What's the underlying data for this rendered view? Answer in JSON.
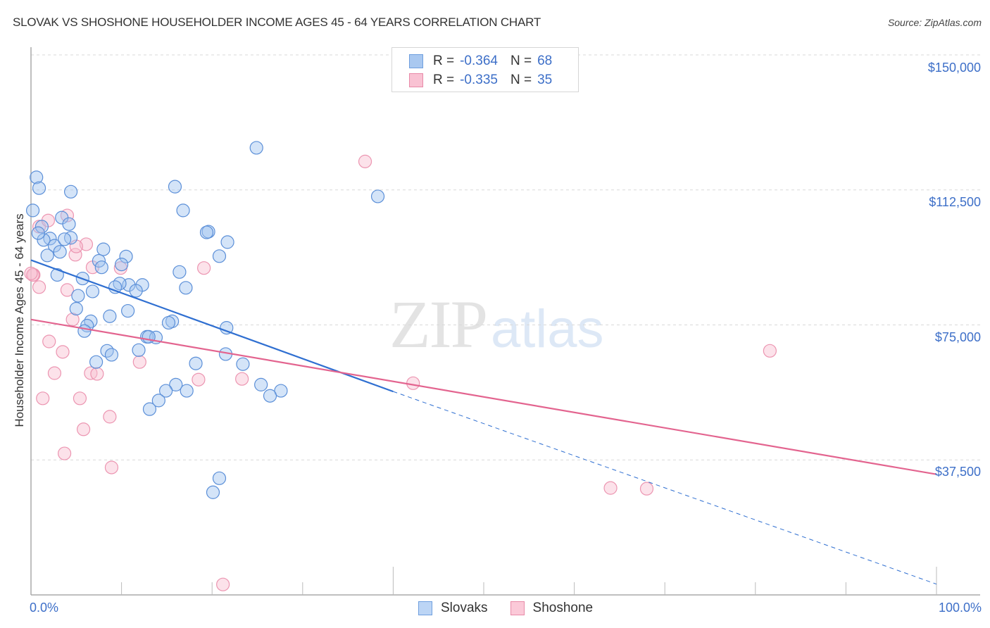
{
  "header": {
    "title": "SLOVAK VS SHOSHONE HOUSEHOLDER INCOME AGES 45 - 64 YEARS CORRELATION CHART",
    "source": "Source: ZipAtlas.com"
  },
  "watermark": {
    "zip": "ZIP",
    "atlas": "atlas"
  },
  "legend": {
    "rows": [
      {
        "r_label": "R =",
        "r_value": "-0.364",
        "n_label": "N =",
        "n_value": "68",
        "color": "#a9c8f0",
        "border": "#6f9fde"
      },
      {
        "r_label": "R =",
        "r_value": "-0.335",
        "n_label": "N =",
        "n_value": "35",
        "color": "#f9c2d3",
        "border": "#e88aa8"
      }
    ]
  },
  "axes": {
    "ylabel": "Householder Income Ages 45 - 64 years",
    "yticks": [
      "$150,000",
      "$112,500",
      "$75,000",
      "$37,500"
    ],
    "xmin_label": "0.0%",
    "xmax_label": "100.0%"
  },
  "bottom_legend": {
    "items": [
      {
        "label": "Slovaks",
        "color": "#bcd5f5",
        "border": "#6f9fde"
      },
      {
        "label": "Shoshone",
        "color": "#fbc9d8",
        "border": "#e88aa8"
      }
    ]
  },
  "colors": {
    "blue_fill": "rgba(160,196,240,0.45)",
    "blue_stroke": "#5b8fd8",
    "blue_line": "#2f6fd1",
    "pink_fill": "rgba(248,190,208,0.45)",
    "pink_stroke": "#ec95b1",
    "pink_line": "#e3648f",
    "axis_label": "#3d6fc8",
    "grid": "#d9d9d9"
  },
  "chart_data": {
    "type": "scatter",
    "title": "SLOVAK VS SHOSHONE HOUSEHOLDER INCOME AGES 45 - 64 YEARS CORRELATION CHART",
    "xlabel": "",
    "ylabel": "Householder Income Ages 45 - 64 years",
    "xlim": [
      0,
      100
    ],
    "ylim": [
      0,
      165000
    ],
    "x_unit": "%",
    "yticks": [
      37500,
      75000,
      112500,
      150000
    ],
    "grid": true,
    "legend_position": "top-center",
    "series": [
      {
        "name": "Slovaks",
        "R": -0.364,
        "N": 68,
        "trend": {
          "x0": 0,
          "y0": 93000,
          "x1": 40,
          "y1": 56500,
          "extended_dashed_to": [
            100,
            3000
          ]
        },
        "points": [
          [
            0.6,
            116000
          ],
          [
            0.9,
            113000
          ],
          [
            4.4,
            112000
          ],
          [
            3.4,
            104800
          ],
          [
            1.2,
            102300
          ],
          [
            4.2,
            103000
          ],
          [
            2.1,
            99000
          ],
          [
            4.4,
            99200
          ],
          [
            1.4,
            98600
          ],
          [
            2.6,
            97000
          ],
          [
            3.7,
            98800
          ],
          [
            8.0,
            96000
          ],
          [
            3.2,
            95300
          ],
          [
            1.8,
            94300
          ],
          [
            10.5,
            94000
          ],
          [
            7.5,
            92800
          ],
          [
            10.0,
            91800
          ],
          [
            7.8,
            91000
          ],
          [
            2.9,
            88900
          ],
          [
            16.4,
            89700
          ],
          [
            5.7,
            87900
          ],
          [
            10.8,
            86100
          ],
          [
            9.8,
            86500
          ],
          [
            12.3,
            86100
          ],
          [
            9.3,
            85500
          ],
          [
            6.8,
            84300
          ],
          [
            17.1,
            85300
          ],
          [
            11.6,
            84500
          ],
          [
            5.2,
            83100
          ],
          [
            5.0,
            79500
          ],
          [
            10.7,
            78900
          ],
          [
            8.7,
            77400
          ],
          [
            6.6,
            76000
          ],
          [
            15.6,
            76000
          ],
          [
            15.2,
            75600
          ],
          [
            6.2,
            74800
          ],
          [
            5.9,
            73300
          ],
          [
            21.6,
            74200
          ],
          [
            12.8,
            71700
          ],
          [
            13.8,
            71500
          ],
          [
            13.0,
            71700
          ],
          [
            11.9,
            68000
          ],
          [
            8.4,
            67800
          ],
          [
            8.9,
            66700
          ],
          [
            21.5,
            66900
          ],
          [
            7.2,
            64700
          ],
          [
            18.2,
            64300
          ],
          [
            23.4,
            64100
          ],
          [
            16.0,
            58400
          ],
          [
            14.9,
            56700
          ],
          [
            17.2,
            56700
          ],
          [
            25.4,
            58400
          ],
          [
            27.6,
            56700
          ],
          [
            26.4,
            55300
          ],
          [
            14.1,
            54000
          ],
          [
            13.1,
            51600
          ],
          [
            19.6,
            100900
          ],
          [
            15.9,
            113400
          ],
          [
            16.8,
            106800
          ],
          [
            19.4,
            100700
          ],
          [
            20.8,
            94100
          ],
          [
            21.7,
            98000
          ],
          [
            24.9,
            124200
          ],
          [
            38.3,
            110700
          ],
          [
            20.8,
            32400
          ],
          [
            20.1,
            28500
          ],
          [
            0.8,
            100500
          ],
          [
            0.2,
            106800
          ]
        ]
      },
      {
        "name": "Shoshone",
        "R": -0.335,
        "N": 35,
        "trend": {
          "x0": 0,
          "y0": 76500,
          "x1": 100,
          "y1": 33500
        },
        "points": [
          [
            0.9,
            102300
          ],
          [
            1.9,
            104000
          ],
          [
            0.3,
            88900
          ],
          [
            0.9,
            85500
          ],
          [
            4.0,
            105400
          ],
          [
            6.1,
            97400
          ],
          [
            4.9,
            94500
          ],
          [
            6.8,
            91000
          ],
          [
            9.9,
            90800
          ],
          [
            4.0,
            84700
          ],
          [
            4.6,
            76500
          ],
          [
            2.0,
            70400
          ],
          [
            3.5,
            67500
          ],
          [
            2.6,
            61600
          ],
          [
            6.6,
            61600
          ],
          [
            7.3,
            61400
          ],
          [
            12.0,
            64700
          ],
          [
            1.3,
            54600
          ],
          [
            5.4,
            54600
          ],
          [
            8.7,
            49500
          ],
          [
            5.8,
            46000
          ],
          [
            3.7,
            39300
          ],
          [
            8.9,
            35400
          ],
          [
            19.1,
            90800
          ],
          [
            23.3,
            60000
          ],
          [
            18.5,
            59800
          ],
          [
            42.2,
            58800
          ],
          [
            36.9,
            120400
          ],
          [
            81.6,
            67800
          ],
          [
            64.0,
            29700
          ],
          [
            68.0,
            29500
          ],
          [
            21.2,
            2900
          ],
          [
            0.2,
            88900
          ],
          [
            5.0,
            96800
          ],
          [
            0.0,
            89300
          ]
        ]
      }
    ]
  }
}
